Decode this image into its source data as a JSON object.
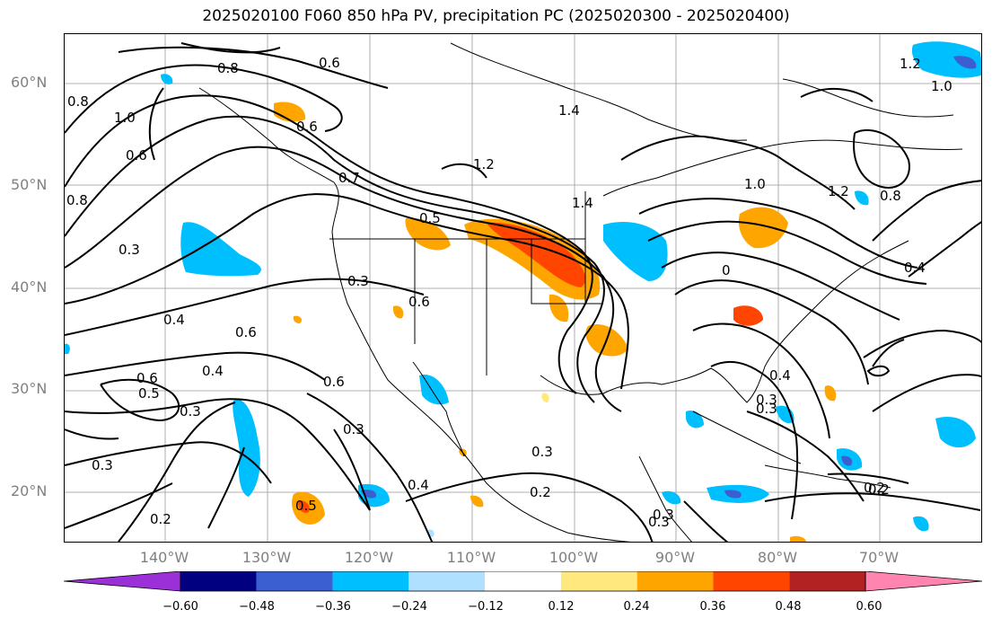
{
  "title": "2025020100 F060 850 hPa PV, precipitation PC (2025020300 - 2025020400)",
  "latitude_labels": [
    "60°N",
    "50°N",
    "40°N",
    "30°N",
    "20°N"
  ],
  "longitude_labels": [
    "140°W",
    "130°W",
    "120°W",
    "110°W",
    "100°W",
    "90°W",
    "80°W",
    "70°W"
  ],
  "contour_labels": [
    "0.8",
    "0.6",
    "0.6",
    "0.8",
    "1.0",
    "0.6",
    "0.8",
    "0.7",
    "1.2",
    "1.4",
    "1.4",
    "1.0",
    "1.2",
    "0.8",
    "0.4",
    "0.3",
    "0.4",
    "0.6",
    "0.4",
    "0.6",
    "0.5",
    "0.6",
    "0.3",
    "0.3",
    "0.3",
    "0.5",
    "0.2",
    "0.4",
    "0.2",
    "0.3",
    "0.3",
    "0.2",
    "0.3",
    "0.4",
    "0.6",
    "0.3",
    "1.2",
    "1.0",
    "0.5",
    "0.3",
    "0.3",
    "0.2",
    "0"
  ],
  "colorbar": {
    "ticks": [
      "−0.60",
      "−0.48",
      "−0.36",
      "−0.24",
      "−0.12",
      "0.12",
      "0.24",
      "0.36",
      "0.48",
      "0.60"
    ],
    "colors": [
      "#9b30d9",
      "#000080",
      "#3b5fd0",
      "#00bfff",
      "#b0e0ff",
      "#ffffff",
      "#ffe97f",
      "#ffa500",
      "#ff4500",
      "#b22222",
      "#ff85b0"
    ]
  }
}
